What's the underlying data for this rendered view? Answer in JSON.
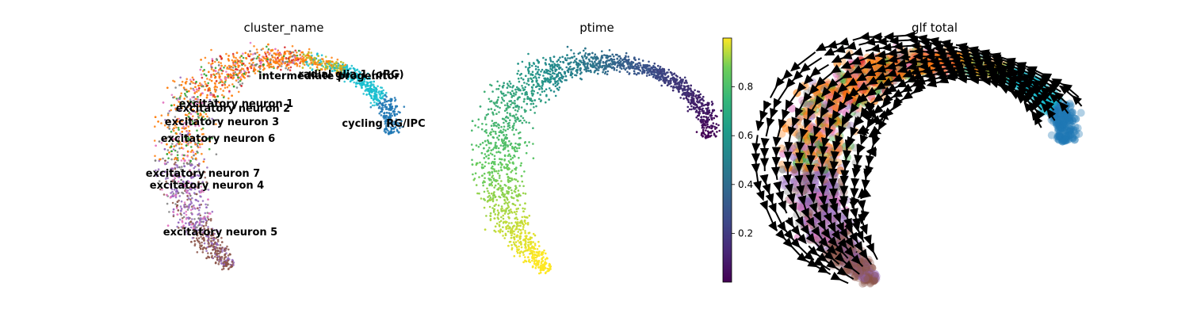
{
  "panels": [
    {
      "title": "cluster_name"
    },
    {
      "title": "ptime"
    },
    {
      "title": "glf total"
    }
  ],
  "colors": {
    "intermediate_progenitor": "#17becf",
    "radial_glia": "#bcbd22",
    "cycling": "#1f77b4",
    "excitatory_1": "#ff7f0e",
    "excitatory_2": "#d62728",
    "excitatory_3": "#e377c2",
    "excitatory_4": "#9467bd",
    "excitatory_5": "#8c564b",
    "excitatory_6": "#2ca02c",
    "excitatory_7": "#7f7f7f"
  },
  "chart_data": [
    {
      "type": "scatter",
      "title": "cluster_name",
      "xlabel": "",
      "ylabel": "",
      "grid": false,
      "annotations": [
        {
          "label": "radial glia 1 (oRG)"
        },
        {
          "label": "intermediate progenitor"
        },
        {
          "label": "excitatory neuron 1"
        },
        {
          "label": "excitatory neuron 2"
        },
        {
          "label": "excitatory neuron 3"
        },
        {
          "label": "cycling RG/IPC"
        },
        {
          "label": "excitatory neuron 6"
        },
        {
          "label": "excitatory neuron 7"
        },
        {
          "label": "excitatory neuron 4"
        },
        {
          "label": "excitatory neuron 5"
        }
      ]
    },
    {
      "type": "scatter",
      "title": "ptime",
      "grid": false,
      "colorbar": {
        "colormap": "viridis",
        "range": [
          0,
          1
        ],
        "ticks": [
          "0.2",
          "0.4",
          "0.6",
          "0.8"
        ]
      }
    },
    {
      "type": "scatter",
      "title": "glf total",
      "grid": false,
      "overlay": "streamlines"
    }
  ]
}
